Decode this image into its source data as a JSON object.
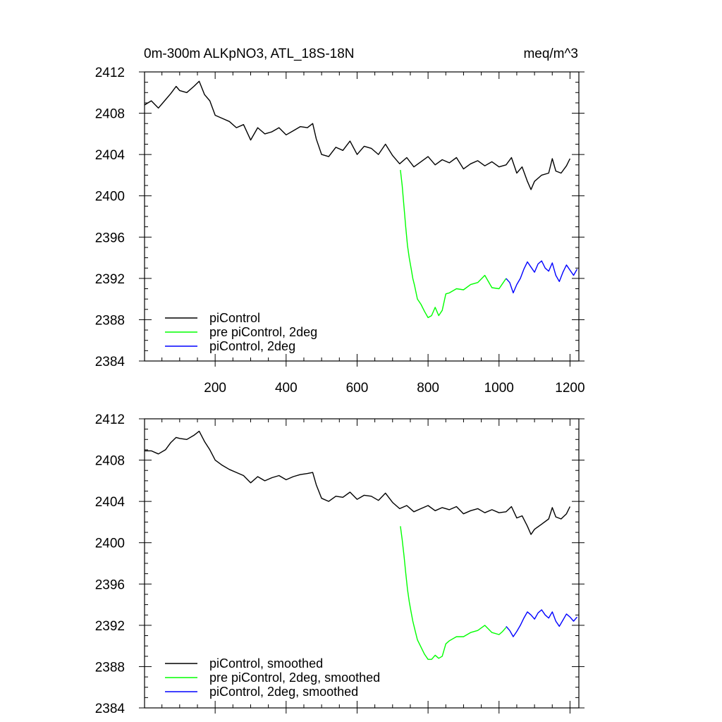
{
  "chart_data": [
    {
      "type": "line",
      "title": "0m-300m ALKpNO3, ATL_18S-18N",
      "units_label": "meq/m^3",
      "xlabel": "",
      "ylabel": "",
      "xlim": [
        1,
        1225
      ],
      "ylim": [
        2384,
        2412
      ],
      "xticks": [
        200,
        400,
        600,
        800,
        1000,
        1200
      ],
      "yticks": [
        2384,
        2388,
        2392,
        2396,
        2400,
        2404,
        2408,
        2412
      ],
      "show_xtick_labels": true,
      "grid": false,
      "legend_position": "bottom-left",
      "series": [
        {
          "name": "piControl",
          "color": "#000000",
          "x": [
            1,
            20,
            40,
            60,
            75,
            90,
            100,
            120,
            140,
            155,
            170,
            185,
            200,
            220,
            240,
            260,
            280,
            300,
            320,
            340,
            360,
            380,
            400,
            420,
            440,
            460,
            475,
            485,
            500,
            520,
            540,
            560,
            580,
            600,
            620,
            640,
            660,
            680,
            700,
            720,
            740,
            760,
            780,
            800,
            820,
            840,
            860,
            880,
            900,
            920,
            940,
            960,
            980,
            1000,
            1020,
            1035,
            1050,
            1065,
            1080,
            1090,
            1100,
            1120,
            1140,
            1150,
            1160,
            1175,
            1190,
            1200
          ],
          "y": [
            2408.8,
            2409.2,
            2408.5,
            2409.3,
            2409.9,
            2410.6,
            2410.2,
            2410.0,
            2410.6,
            2411.1,
            2409.8,
            2409.2,
            2407.8,
            2407.5,
            2407.2,
            2406.6,
            2406.9,
            2405.4,
            2406.6,
            2406.0,
            2406.2,
            2406.6,
            2405.9,
            2406.3,
            2406.7,
            2406.6,
            2407.0,
            2405.5,
            2404.0,
            2403.8,
            2404.7,
            2404.4,
            2405.3,
            2404.0,
            2404.8,
            2404.6,
            2404.0,
            2405.0,
            2403.9,
            2403.1,
            2403.7,
            2402.8,
            2403.3,
            2403.8,
            2403.0,
            2403.5,
            2403.2,
            2403.7,
            2402.6,
            2403.1,
            2403.4,
            2402.9,
            2403.3,
            2402.8,
            2403.0,
            2403.7,
            2402.2,
            2402.8,
            2401.4,
            2400.6,
            2401.4,
            2402.0,
            2402.2,
            2403.6,
            2402.4,
            2402.2,
            2402.9,
            2403.6
          ]
        },
        {
          "name": "pre piControl, 2deg",
          "color": "#00ff00",
          "x": [
            722,
            727,
            732,
            737,
            742,
            747,
            752,
            757,
            762,
            770,
            780,
            790,
            800,
            810,
            820,
            830,
            840,
            850,
            860,
            880,
            900,
            920,
            940,
            960,
            980,
            1000,
            1010,
            1020
          ],
          "y": [
            2402.5,
            2401.0,
            2399.0,
            2397.0,
            2395.2,
            2394.0,
            2393.0,
            2392.0,
            2391.3,
            2390.0,
            2389.5,
            2388.8,
            2388.2,
            2388.4,
            2389.2,
            2388.4,
            2388.9,
            2390.5,
            2390.6,
            2391.0,
            2390.9,
            2391.4,
            2391.6,
            2392.3,
            2391.1,
            2391.0,
            2391.5,
            2392.0
          ]
        },
        {
          "name": "piControl, 2deg",
          "color": "#0000ff",
          "x": [
            1020,
            1030,
            1040,
            1050,
            1060,
            1070,
            1080,
            1090,
            1100,
            1110,
            1120,
            1130,
            1140,
            1150,
            1160,
            1170,
            1180,
            1190,
            1200,
            1210,
            1220
          ],
          "y": [
            2392.0,
            2391.6,
            2390.6,
            2391.4,
            2392.0,
            2392.9,
            2393.6,
            2393.1,
            2392.6,
            2393.4,
            2393.7,
            2393.0,
            2392.7,
            2393.5,
            2392.3,
            2391.7,
            2392.6,
            2393.3,
            2392.8,
            2392.3,
            2392.9
          ]
        }
      ]
    },
    {
      "type": "line",
      "title": "",
      "xlabel": "",
      "ylabel": "",
      "xlim": [
        1,
        1225
      ],
      "ylim": [
        2384,
        2412
      ],
      "xticks": [
        200,
        400,
        600,
        800,
        1000,
        1200
      ],
      "yticks": [
        2384,
        2388,
        2392,
        2396,
        2400,
        2404,
        2408,
        2412
      ],
      "show_xtick_labels": false,
      "grid": false,
      "legend_position": "bottom-left",
      "series": [
        {
          "name": "piControl, smoothed",
          "color": "#000000",
          "x": [
            1,
            20,
            40,
            60,
            75,
            90,
            100,
            120,
            140,
            155,
            170,
            185,
            200,
            220,
            240,
            260,
            280,
            300,
            320,
            340,
            360,
            380,
            400,
            420,
            440,
            460,
            475,
            485,
            500,
            520,
            540,
            560,
            580,
            600,
            620,
            640,
            660,
            680,
            700,
            720,
            740,
            760,
            780,
            800,
            820,
            840,
            860,
            880,
            900,
            920,
            940,
            960,
            980,
            1000,
            1020,
            1035,
            1050,
            1065,
            1080,
            1090,
            1100,
            1120,
            1140,
            1150,
            1160,
            1175,
            1190,
            1200
          ],
          "y": [
            2408.9,
            2408.9,
            2408.6,
            2409.0,
            2409.7,
            2410.2,
            2410.1,
            2410.0,
            2410.4,
            2410.8,
            2409.8,
            2409.0,
            2408.0,
            2407.5,
            2407.1,
            2406.8,
            2406.5,
            2405.8,
            2406.4,
            2406.0,
            2406.3,
            2406.5,
            2406.1,
            2406.4,
            2406.6,
            2406.7,
            2406.8,
            2405.6,
            2404.3,
            2404.0,
            2404.5,
            2404.4,
            2404.9,
            2404.2,
            2404.6,
            2404.5,
            2404.1,
            2404.8,
            2403.9,
            2403.3,
            2403.6,
            2403.0,
            2403.3,
            2403.6,
            2403.1,
            2403.4,
            2403.2,
            2403.5,
            2402.8,
            2403.1,
            2403.3,
            2402.9,
            2403.2,
            2402.9,
            2403.0,
            2403.5,
            2402.4,
            2402.6,
            2401.6,
            2400.8,
            2401.3,
            2401.8,
            2402.3,
            2403.4,
            2402.5,
            2402.3,
            2402.8,
            2403.5
          ]
        },
        {
          "name": "pre piControl, 2deg, smoothed",
          "color": "#00ff00",
          "x": [
            722,
            727,
            732,
            737,
            742,
            747,
            752,
            757,
            762,
            770,
            780,
            790,
            800,
            810,
            820,
            830,
            840,
            850,
            860,
            880,
            900,
            920,
            940,
            960,
            980,
            1000,
            1010,
            1020
          ],
          "y": [
            2401.6,
            2400.3,
            2398.8,
            2397.1,
            2395.5,
            2394.3,
            2393.3,
            2392.4,
            2391.7,
            2390.6,
            2389.9,
            2389.2,
            2388.7,
            2388.7,
            2389.1,
            2388.8,
            2389.0,
            2390.2,
            2390.5,
            2390.9,
            2390.9,
            2391.3,
            2391.5,
            2392.0,
            2391.3,
            2391.1,
            2391.4,
            2391.8
          ]
        },
        {
          "name": "piControl, 2deg, smoothed",
          "color": "#0000ff",
          "x": [
            1020,
            1030,
            1040,
            1050,
            1060,
            1070,
            1080,
            1090,
            1100,
            1110,
            1120,
            1130,
            1140,
            1150,
            1160,
            1170,
            1180,
            1190,
            1200,
            1210,
            1220
          ],
          "y": [
            2391.9,
            2391.5,
            2390.9,
            2391.4,
            2392.0,
            2392.7,
            2393.3,
            2393.0,
            2392.6,
            2393.2,
            2393.5,
            2393.0,
            2392.7,
            2393.3,
            2392.4,
            2391.9,
            2392.5,
            2393.1,
            2392.8,
            2392.4,
            2392.8
          ]
        }
      ]
    }
  ]
}
